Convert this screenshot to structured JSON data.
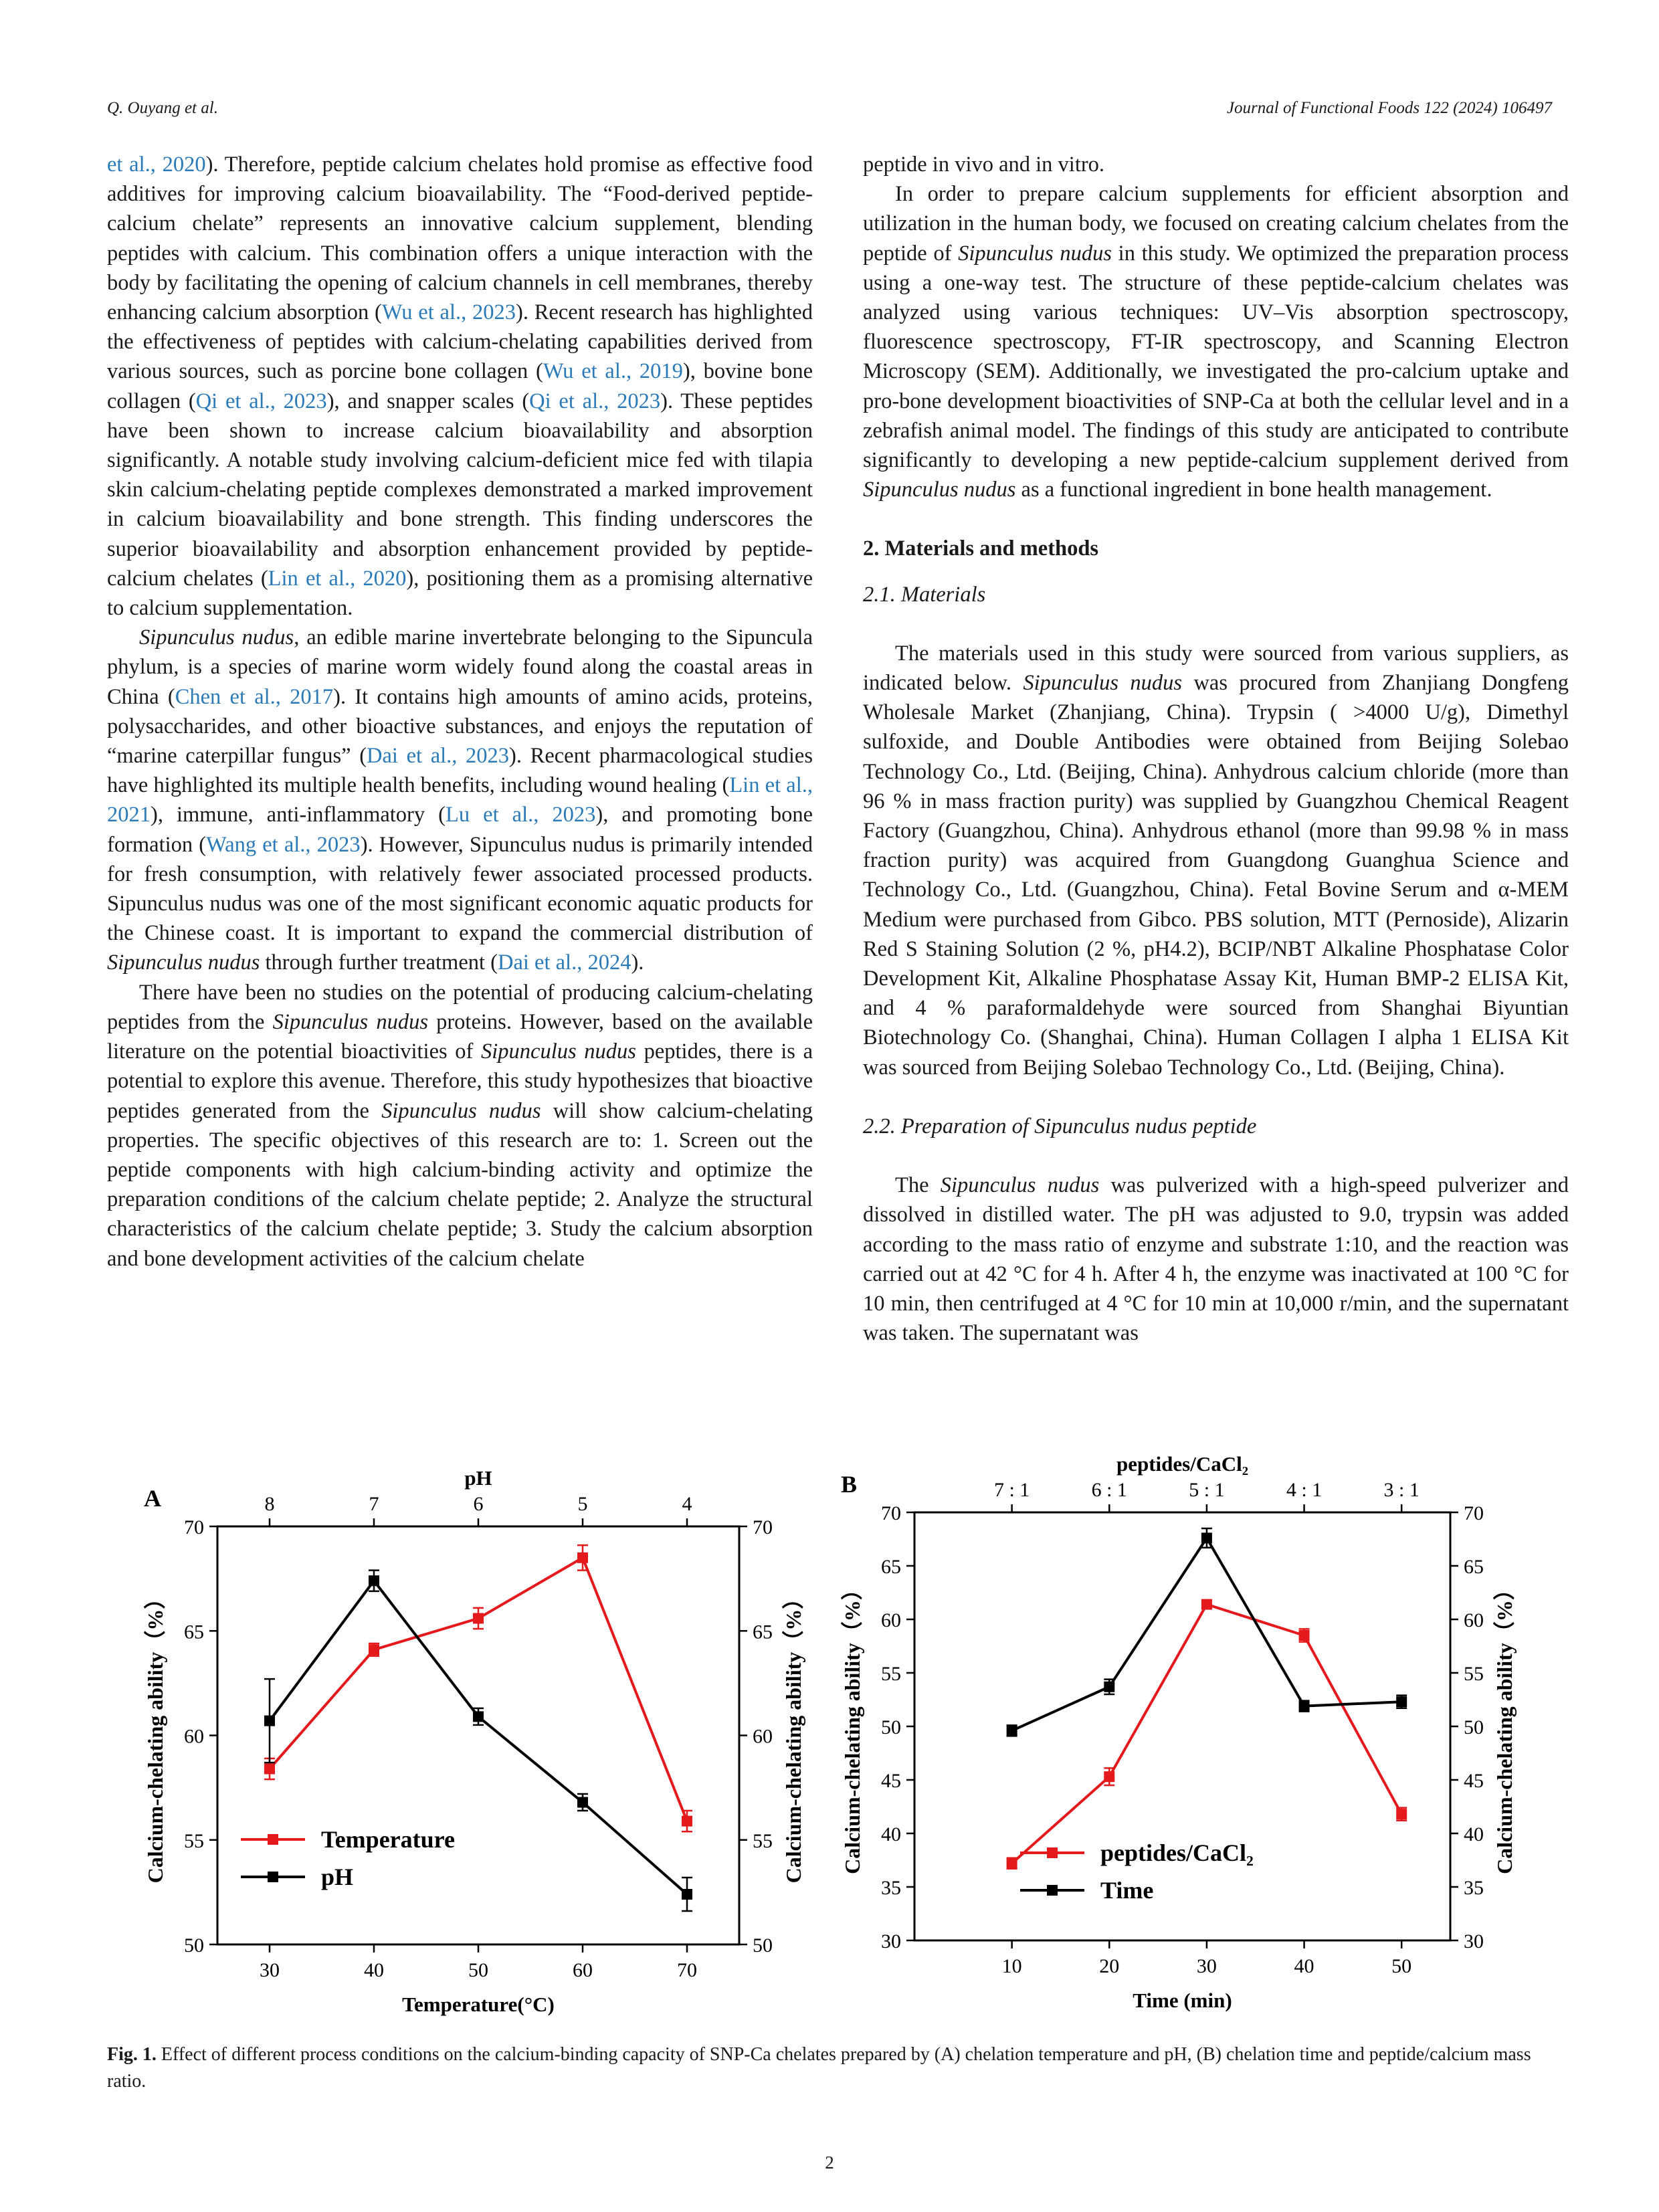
{
  "header": {
    "left": "Q. Ouyang et al.",
    "right": "Journal of Functional Foods 122 (2024) 106497"
  },
  "left_column": [
    {
      "segments": [
        {
          "t": "et al., 2020",
          "ref": true
        },
        {
          "t": "). Therefore, peptide calcium chelates hold promise as effective food additives for improving calcium bioavailability. The “Food-derived peptide-calcium chelate” represents an innovative calcium supplement, blending peptides with calcium. This combination offers a unique interaction with the body by facilitating the opening of calcium channels in cell membranes, thereby enhancing calcium absorption ("
        },
        {
          "t": "Wu et al., 2023",
          "ref": true
        },
        {
          "t": "). Recent research has highlighted the effectiveness of peptides with calcium-chelating capabilities derived from various sources, such as porcine bone collagen ("
        },
        {
          "t": "Wu et al., 2019",
          "ref": true
        },
        {
          "t": "), bovine bone collagen ("
        },
        {
          "t": "Qi et al., 2023",
          "ref": true
        },
        {
          "t": "), and snapper scales ("
        },
        {
          "t": "Qi et al., 2023",
          "ref": true
        },
        {
          "t": "). These peptides have been shown to increase calcium bioavailability and absorption significantly. A notable study involving calcium-deficient mice fed with tilapia skin calcium-chelating peptide complexes demonstrated a marked improvement in calcium bioavailability and bone strength. This finding underscores the superior bioavailability and absorption enhancement provided by peptide-calcium chelates ("
        },
        {
          "t": "Lin et al., 2020",
          "ref": true
        },
        {
          "t": "), positioning them as a promising alternative to calcium supplementation."
        }
      ],
      "indent": false
    },
    {
      "segments": [
        {
          "t": "Sipunculus nudus",
          "it": true
        },
        {
          "t": ", an edible marine invertebrate belonging to the Sipuncula phylum, is a species of marine worm widely found along the coastal areas in China ("
        },
        {
          "t": "Chen et al., 2017",
          "ref": true
        },
        {
          "t": "). It contains high amounts of amino acids, proteins, polysaccharides, and other bioactive substances, and enjoys the reputation of “marine caterpillar fungus” ("
        },
        {
          "t": "Dai et al., 2023",
          "ref": true
        },
        {
          "t": "). Recent pharmacological studies have highlighted its multiple health benefits, including wound healing ("
        },
        {
          "t": "Lin et al., 2021",
          "ref": true
        },
        {
          "t": "), immune, anti-inflammatory ("
        },
        {
          "t": "Lu et al., 2023",
          "ref": true
        },
        {
          "t": "), and promoting bone formation ("
        },
        {
          "t": "Wang et al., 2023",
          "ref": true
        },
        {
          "t": "). However, Sipunculus nudus is primarily intended for fresh consumption, with relatively fewer associated processed products. Sipunculus nudus was one of the most significant economic aquatic products for the Chinese coast. It is important to expand the commercial distribution of "
        },
        {
          "t": "Sipunculus nudus",
          "it": true
        },
        {
          "t": " through further treatment ("
        },
        {
          "t": "Dai et al., 2024",
          "ref": true
        },
        {
          "t": ")."
        }
      ],
      "indent": true
    },
    {
      "segments": [
        {
          "t": "There have been no studies on the potential of producing calcium-chelating peptides from the "
        },
        {
          "t": "Sipunculus nudus",
          "it": true
        },
        {
          "t": " proteins. However, based on the available literature on the potential bioactivities of "
        },
        {
          "t": "Sipunculus nudus",
          "it": true
        },
        {
          "t": " peptides, there is a potential to explore this avenue. Therefore, this study hypothesizes that bioactive peptides generated from the "
        },
        {
          "t": "Sipunculus nudus",
          "it": true
        },
        {
          "t": " will show calcium-chelating properties. The specific objectives of this research are to: 1. Screen out the peptide components with high calcium-binding activity and optimize the preparation conditions of the calcium chelate peptide; 2. Analyze the structural characteristics of the calcium chelate peptide; 3. Study the calcium absorption and bone development activities of the calcium chelate"
        }
      ],
      "indent": true
    }
  ],
  "right_column": {
    "p0": [
      {
        "t": "peptide in vivo and in vitro."
      }
    ],
    "p1": [
      {
        "t": "In order to prepare calcium supplements for efficient absorption and utilization in the human body, we focused on creating calcium chelates from the peptide of "
      },
      {
        "t": "Sipunculus nudus",
        "it": true
      },
      {
        "t": " in this study. We optimized the preparation process using a one-way test. The structure of these peptide-calcium chelates was analyzed using various techniques: UV–Vis absorption spectroscopy, fluorescence spectroscopy, FT-IR spectroscopy, and Scanning Electron Microscopy (SEM). Additionally, we investigated the pro-calcium uptake and pro-bone development bioactivities of SNP-Ca at both the cellular level and in a zebrafish animal model. The findings of this study are anticipated to contribute significantly to developing a new peptide-calcium supplement derived from "
      },
      {
        "t": "Sipunculus nudus",
        "it": true
      },
      {
        "t": " as a functional ingredient in bone health management."
      }
    ],
    "section_2": "2.  Materials and methods",
    "section_2_1": "2.1.  Materials",
    "p2": [
      {
        "t": "The materials used in this study were sourced from various suppliers, as indicated below. "
      },
      {
        "t": "Sipunculus nudus",
        "it": true
      },
      {
        "t": " was procured from Zhanjiang Dongfeng Wholesale Market (Zhanjiang, China). Trypsin ( >4000 U/g), Dimethyl sulfoxide, and Double Antibodies were obtained from Beijing Solebao Technology Co., Ltd. (Beijing, China). Anhydrous calcium chloride (more than 96 % in mass fraction purity) was supplied by Guangzhou Chemical Reagent Factory (Guangzhou, China). Anhydrous ethanol (more than 99.98 % in mass fraction purity) was acquired from Guangdong Guanghua Science and Technology Co., Ltd. (Guangzhou, China). Fetal Bovine Serum and α-MEM Medium were purchased from Gibco. PBS solution, MTT (Pernoside), Alizarin Red S Staining Solution (2 %, pH4.2), BCIP/NBT Alkaline Phosphatase Color Development Kit, Alkaline Phosphatase Assay Kit, Human BMP-2 ELISA Kit, and 4 % paraformaldehyde were sourced from Shanghai Biyuntian Biotechnology Co. (Shanghai, China). Human Collagen I alpha 1 ELISA Kit was sourced from Beijing Solebao Technology Co., Ltd. (Beijing, China)."
      }
    ],
    "section_2_2": "2.2.  Preparation of Sipunculus nudus peptide",
    "p3": [
      {
        "t": "The "
      },
      {
        "t": "Sipunculus nudus",
        "it": true
      },
      {
        "t": " was pulverized with a high-speed pulverizer and dissolved in distilled water. The pH was adjusted to 9.0, trypsin was added according to the mass ratio of enzyme and substrate 1:10, and the reaction was carried out at 42 °C for 4 h. After 4 h, the enzyme was inactivated at 100 °C for 10 min, then centrifuged at 4 °C for 10 min at 10,000 r/min, and the supernatant was taken. The supernatant was"
      }
    ]
  },
  "figure_caption": {
    "label": "Fig. 1.",
    "text": " Effect of different process conditions on the calcium-binding capacity of SNP-Ca chelates prepared by (A) chelation temperature and pH, (B) chelation time and peptide/calcium mass ratio."
  },
  "page_number": "2",
  "colors": {
    "red_series": "#e3191c",
    "black_series": "#000000",
    "ref_link": "#2a7ab8"
  },
  "chart_data": [
    {
      "panel": "A",
      "type": "line",
      "xlabel": "Temperature(°C)",
      "x2label": "pH",
      "ylabel": "Calcium-chelating ability（%）",
      "y2label": "Calcium-chelating ability（%）",
      "ylim": [
        50,
        70
      ],
      "yticks": [
        50,
        55,
        60,
        65,
        70
      ],
      "xlim": [
        25,
        75
      ],
      "xticks": [
        30,
        40,
        50,
        60,
        70
      ],
      "x2ticks": [
        "8",
        "7",
        "6",
        "5",
        "4"
      ],
      "legend_position": "bottom-left",
      "series": [
        {
          "name": "Temperature",
          "color": "#e3191c",
          "marker": "square",
          "x": [
            30,
            40,
            50,
            60,
            70
          ],
          "values": [
            58.4,
            64.1,
            65.6,
            68.5,
            55.9
          ],
          "err": [
            0.5,
            0.3,
            0.5,
            0.6,
            0.5
          ]
        },
        {
          "name": "pH",
          "color": "#000000",
          "marker": "square",
          "x": [
            30,
            40,
            50,
            60,
            70
          ],
          "values": [
            60.7,
            67.4,
            60.9,
            56.8,
            52.4
          ],
          "err": [
            2.0,
            0.5,
            0.4,
            0.4,
            0.8
          ]
        }
      ]
    },
    {
      "panel": "B",
      "type": "line",
      "xlabel": "Time (min)",
      "x2label": "peptides/CaCl₂",
      "ylabel": "Calcium-chelating ability（%）",
      "y2label": "Calcium-chelating ability（%）",
      "ylim": [
        30,
        70
      ],
      "yticks": [
        30,
        35,
        40,
        45,
        50,
        55,
        60,
        65,
        70
      ],
      "xlim": [
        0,
        55
      ],
      "xticks": [
        10,
        20,
        30,
        40,
        50
      ],
      "x2ticks": [
        "7 : 1",
        "6 : 1",
        "5 : 1",
        "4 : 1",
        "3 : 1"
      ],
      "legend_position": "bottom-left",
      "series": [
        {
          "name": "peptides/CaCl₂",
          "color": "#e3191c",
          "marker": "square",
          "x": [
            10,
            20,
            30,
            40,
            50
          ],
          "values": [
            37.2,
            45.3,
            61.4,
            58.5,
            41.8
          ],
          "err": [
            0.5,
            0.8,
            0.4,
            0.6,
            0.6
          ]
        },
        {
          "name": "Time",
          "color": "#000000",
          "marker": "square",
          "x": [
            10,
            20,
            30,
            40,
            50
          ],
          "values": [
            49.6,
            53.7,
            67.6,
            51.9,
            52.3
          ],
          "err": [
            0.5,
            0.7,
            0.9,
            0.5,
            0.6
          ]
        }
      ]
    }
  ]
}
